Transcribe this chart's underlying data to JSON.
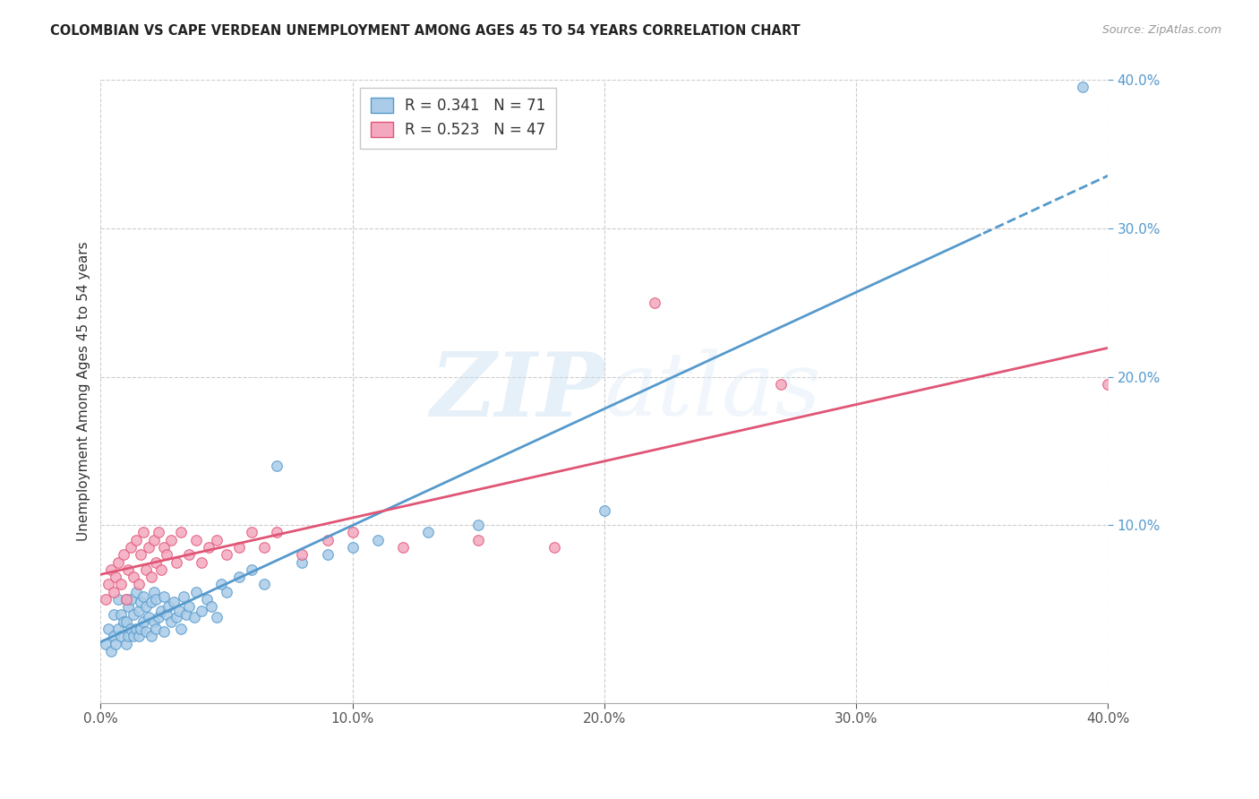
{
  "title": "COLOMBIAN VS CAPE VERDEAN UNEMPLOYMENT AMONG AGES 45 TO 54 YEARS CORRELATION CHART",
  "source": "Source: ZipAtlas.com",
  "ylabel": "Unemployment Among Ages 45 to 54 years",
  "xlim": [
    0,
    0.4
  ],
  "ylim": [
    -0.02,
    0.4
  ],
  "xticks": [
    0.0,
    0.1,
    0.2,
    0.3,
    0.4
  ],
  "yticks": [
    0.1,
    0.2,
    0.3,
    0.4
  ],
  "colombian_color": "#aacce8",
  "capeverdean_color": "#f4a8c0",
  "colombian_line_color": "#5599cc",
  "capeverdean_line_color": "#e05575",
  "R_colombian": 0.341,
  "N_colombian": 71,
  "R_capeverdean": 0.523,
  "N_capeverdean": 47,
  "background_color": "#ffffff",
  "grid_color": "#cccccc",
  "watermark_zip": "ZIP",
  "watermark_atlas": "atlas",
  "legend_r_color": "#5599cc",
  "legend_n_color": "#e05575",
  "colombian_x": [
    0.002,
    0.003,
    0.004,
    0.005,
    0.005,
    0.006,
    0.007,
    0.007,
    0.008,
    0.008,
    0.009,
    0.01,
    0.01,
    0.01,
    0.011,
    0.011,
    0.012,
    0.012,
    0.013,
    0.013,
    0.014,
    0.014,
    0.015,
    0.015,
    0.016,
    0.016,
    0.017,
    0.017,
    0.018,
    0.018,
    0.019,
    0.02,
    0.02,
    0.021,
    0.021,
    0.022,
    0.022,
    0.023,
    0.024,
    0.025,
    0.025,
    0.026,
    0.027,
    0.028,
    0.029,
    0.03,
    0.031,
    0.032,
    0.033,
    0.034,
    0.035,
    0.037,
    0.038,
    0.04,
    0.042,
    0.044,
    0.046,
    0.048,
    0.05,
    0.055,
    0.06,
    0.065,
    0.07,
    0.08,
    0.09,
    0.1,
    0.11,
    0.13,
    0.15,
    0.2,
    0.39
  ],
  "colombian_y": [
    0.02,
    0.03,
    0.015,
    0.025,
    0.04,
    0.02,
    0.03,
    0.05,
    0.025,
    0.04,
    0.035,
    0.02,
    0.035,
    0.05,
    0.025,
    0.045,
    0.03,
    0.05,
    0.025,
    0.04,
    0.03,
    0.055,
    0.025,
    0.042,
    0.03,
    0.048,
    0.035,
    0.052,
    0.028,
    0.045,
    0.038,
    0.025,
    0.048,
    0.035,
    0.055,
    0.03,
    0.05,
    0.038,
    0.042,
    0.028,
    0.052,
    0.04,
    0.045,
    0.035,
    0.048,
    0.038,
    0.042,
    0.03,
    0.052,
    0.04,
    0.045,
    0.038,
    0.055,
    0.042,
    0.05,
    0.045,
    0.038,
    0.06,
    0.055,
    0.065,
    0.07,
    0.06,
    0.14,
    0.075,
    0.08,
    0.085,
    0.09,
    0.095,
    0.1,
    0.11,
    0.395
  ],
  "capeverdean_x": [
    0.002,
    0.003,
    0.004,
    0.005,
    0.006,
    0.007,
    0.008,
    0.009,
    0.01,
    0.011,
    0.012,
    0.013,
    0.014,
    0.015,
    0.016,
    0.017,
    0.018,
    0.019,
    0.02,
    0.021,
    0.022,
    0.023,
    0.024,
    0.025,
    0.026,
    0.028,
    0.03,
    0.032,
    0.035,
    0.038,
    0.04,
    0.043,
    0.046,
    0.05,
    0.055,
    0.06,
    0.065,
    0.07,
    0.08,
    0.09,
    0.1,
    0.12,
    0.15,
    0.18,
    0.22,
    0.27,
    0.4
  ],
  "capeverdean_y": [
    0.05,
    0.06,
    0.07,
    0.055,
    0.065,
    0.075,
    0.06,
    0.08,
    0.05,
    0.07,
    0.085,
    0.065,
    0.09,
    0.06,
    0.08,
    0.095,
    0.07,
    0.085,
    0.065,
    0.09,
    0.075,
    0.095,
    0.07,
    0.085,
    0.08,
    0.09,
    0.075,
    0.095,
    0.08,
    0.09,
    0.075,
    0.085,
    0.09,
    0.08,
    0.085,
    0.095,
    0.085,
    0.095,
    0.08,
    0.09,
    0.095,
    0.085,
    0.09,
    0.085,
    0.25,
    0.195,
    0.195
  ]
}
